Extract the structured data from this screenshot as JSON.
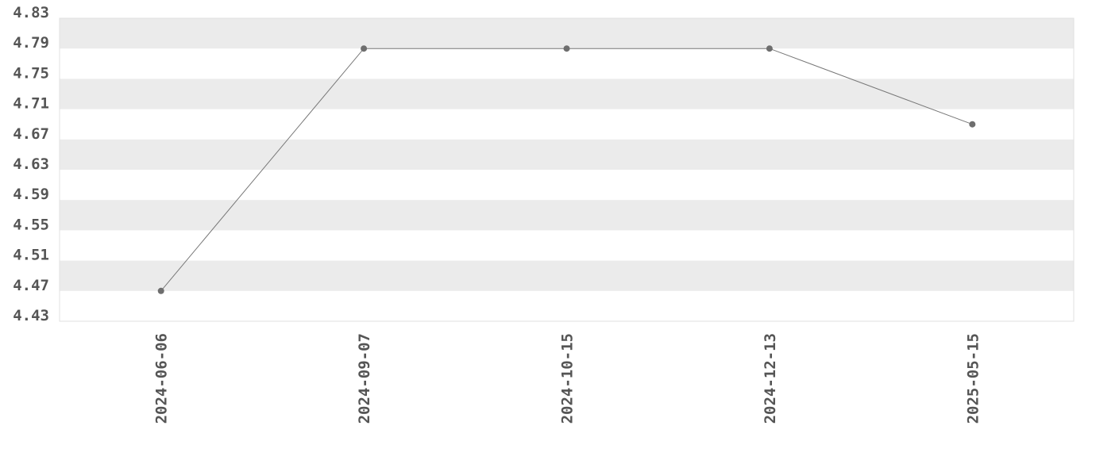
{
  "chart_data": {
    "type": "line",
    "title": "",
    "xlabel": "",
    "ylabel": "",
    "categories": [
      "2024-06-06",
      "2024-09-07",
      "2024-10-15",
      "2024-12-13",
      "2025-05-15"
    ],
    "values": [
      4.47,
      4.79,
      4.79,
      4.79,
      4.69
    ],
    "ylim": [
      4.43,
      4.83
    ],
    "yticks": [
      "4.43",
      "4.47",
      "4.51",
      "4.55",
      "4.59",
      "4.63",
      "4.67",
      "4.71",
      "4.75",
      "4.79",
      "4.83"
    ],
    "grid": "alternating horizontal bands",
    "legend": "none",
    "colors": {
      "line": "#777777",
      "marker": "#6e6e6e",
      "band": "#ebebeb",
      "text": "#555555"
    }
  }
}
